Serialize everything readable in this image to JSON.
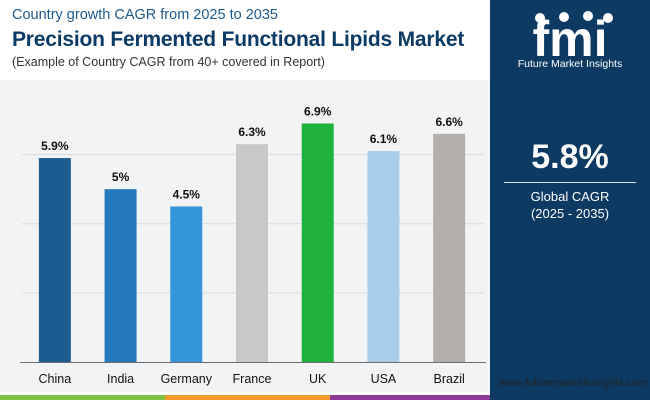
{
  "header": {
    "subtitle": "Country growth CAGR from 2025 to 2035",
    "title": "Precision Fermented Functional Lipids Market",
    "note": "(Example of Country CAGR from 40+ covered in Report)"
  },
  "chart_data": {
    "type": "bar",
    "categories": [
      "China",
      "India",
      "Germany",
      "France",
      "UK",
      "USA",
      "Brazil"
    ],
    "values": [
      5.9,
      5.0,
      4.5,
      6.3,
      6.9,
      6.1,
      6.6
    ],
    "data_labels": [
      "5.9%",
      "5%",
      "4.5%",
      "6.3%",
      "6.9%",
      "6.1%",
      "6.6%"
    ],
    "colors": [
      "#1d5c91",
      "#2779bd",
      "#3596dc",
      "#c7c8ca",
      "#1fb23a",
      "#a9cde8",
      "#b3aeaa"
    ],
    "ylim": [
      0,
      7.0
    ],
    "gridlines": [
      2,
      4,
      6
    ],
    "title": "",
    "xlabel": "",
    "ylabel": ""
  },
  "sidebar": {
    "logo_name": "Future Market Insights",
    "big_value": "5.8%",
    "cagr_label": "Global CAGR",
    "cagr_period": "(2025 - 2035)",
    "website": "www.futuremarketinsights.com"
  },
  "colors": {
    "navy": "#0d3a63",
    "stripe_green": "#7dc242",
    "stripe_orange": "#f39a2c",
    "stripe_purple": "#8a3a96"
  }
}
